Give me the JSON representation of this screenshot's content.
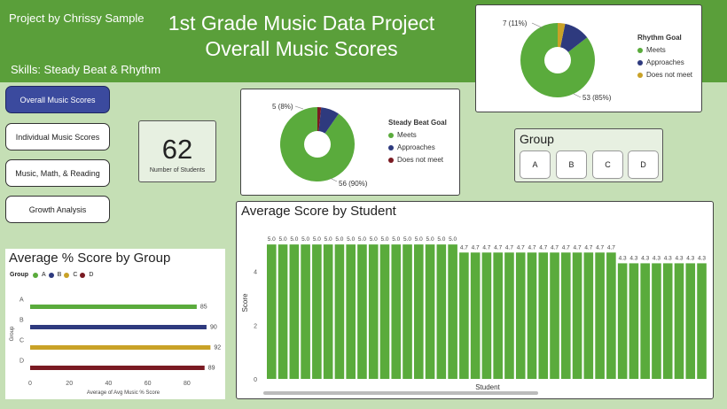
{
  "header": {
    "project_by": "Project by Chrissy Sample",
    "title_line1": "1st Grade Music Data Project",
    "title_line2": "Overall Music Scores",
    "skills": "Skills: Steady Beat & Rhythm"
  },
  "nav": {
    "items": [
      {
        "label": "Overall Music Scores",
        "active": true
      },
      {
        "label": "Individual Music Scores",
        "active": false
      },
      {
        "label": "Music, Math, & Reading",
        "active": false
      },
      {
        "label": "Growth Analysis",
        "active": false
      }
    ]
  },
  "students": {
    "count": "62",
    "label": "Number of Students"
  },
  "colors": {
    "meets": "#5aab3c",
    "approaches": "#2e3a7e",
    "not_meet": "#7a1a22",
    "rhythm_not_meet": "#c9a227",
    "group_c": "#c9a227"
  },
  "steady_beat": {
    "legend_title": "Steady Beat Goal",
    "legend": [
      "Meets",
      "Approaches",
      "Does not meet"
    ],
    "labels": {
      "approaches": "5 (8%)",
      "meets": "56 (90%)"
    }
  },
  "rhythm": {
    "legend_title": "Rhythm Goal",
    "legend": [
      "Meets",
      "Approaches",
      "Does not meet"
    ],
    "labels": {
      "approaches": "7 (11%)",
      "meets": "53 (85%)"
    }
  },
  "group_slicer": {
    "title": "Group",
    "options": [
      "A",
      "B",
      "C",
      "D"
    ]
  },
  "chart_data": [
    {
      "type": "pie",
      "title": "Steady Beat Goal",
      "categories": [
        "Meets",
        "Approaches",
        "Does not meet"
      ],
      "values": [
        56,
        5,
        1
      ]
    },
    {
      "type": "pie",
      "title": "Rhythm Goal",
      "categories": [
        "Meets",
        "Approaches",
        "Does not meet"
      ],
      "values": [
        53,
        7,
        2
      ]
    },
    {
      "type": "bar",
      "orientation": "horizontal",
      "title": "Average % Score by Group",
      "legend_title": "Group",
      "categories": [
        "A",
        "B",
        "C",
        "D"
      ],
      "values": [
        85,
        90,
        92,
        89
      ],
      "colors": [
        "#5aab3c",
        "#2e3a7e",
        "#c9a227",
        "#7a1a22"
      ],
      "xlabel": "Average of Avg Music % Score",
      "ylabel": "Group",
      "xticks": [
        0,
        20,
        40,
        60,
        80
      ],
      "xlim": [
        0,
        95
      ]
    },
    {
      "type": "bar",
      "title": "Average Score by Student",
      "xlabel": "Student",
      "ylabel": "Score",
      "yticks": [
        0,
        2,
        4
      ],
      "ylim": [
        0,
        5.4
      ],
      "values": [
        5.0,
        5.0,
        5.0,
        5.0,
        5.0,
        5.0,
        5.0,
        5.0,
        5.0,
        5.0,
        5.0,
        5.0,
        5.0,
        5.0,
        5.0,
        5.0,
        5.0,
        4.7,
        4.7,
        4.7,
        4.7,
        4.7,
        4.7,
        4.7,
        4.7,
        4.7,
        4.7,
        4.7,
        4.7,
        4.7,
        4.7,
        4.3,
        4.3,
        4.3,
        4.3,
        4.3,
        4.3,
        4.3,
        4.3
      ],
      "value_labels": [
        "5.0",
        "5.0",
        "5.0",
        "5.0",
        "5.0",
        "5.0",
        "5.0",
        "5.0",
        "5.0",
        "5.0",
        "5.0",
        "5.0",
        "5.0",
        "5.0",
        "5.0",
        "5.0",
        "5.0",
        "4.7",
        "4.7",
        "4.7",
        "4.7",
        "4.7",
        "4.7",
        "4.7",
        "4.7",
        "4.7",
        "4.7",
        "4.7",
        "4.7",
        "4.7",
        "4.7",
        "4.3",
        "4.3",
        "4.3",
        "4.3",
        "4.3",
        "4.3",
        "4.3",
        "4.3"
      ]
    }
  ]
}
